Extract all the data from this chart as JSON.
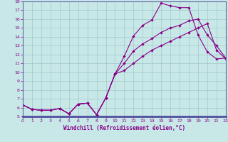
{
  "xlabel": "Windchill (Refroidissement éolien,°C)",
  "xlim": [
    0,
    22
  ],
  "ylim": [
    5,
    18
  ],
  "xticks": [
    0,
    1,
    2,
    3,
    4,
    5,
    6,
    7,
    8,
    9,
    10,
    11,
    12,
    13,
    14,
    15,
    16,
    17,
    18,
    19,
    20,
    21,
    22
  ],
  "yticks": [
    5,
    6,
    7,
    8,
    9,
    10,
    11,
    12,
    13,
    14,
    15,
    16,
    17,
    18
  ],
  "bg_color": "#c8e8e8",
  "line_color": "#880088",
  "grid_color": "#a0c8c8",
  "border_color": "#6060a0",
  "line1_x": [
    0,
    1,
    2,
    3,
    4,
    5,
    6,
    7,
    8,
    9,
    10,
    11,
    12,
    13,
    14,
    15,
    16,
    17,
    18,
    19,
    20,
    21,
    22
  ],
  "line1_y": [
    6.3,
    5.8,
    5.7,
    5.7,
    5.9,
    5.3,
    6.4,
    6.5,
    5.2,
    7.1,
    9.8,
    11.8,
    14.1,
    15.3,
    15.9,
    17.8,
    17.5,
    17.3,
    17.3,
    14.2,
    12.3,
    11.5,
    11.6
  ],
  "line2_x": [
    0,
    1,
    2,
    3,
    4,
    5,
    6,
    7,
    8,
    9,
    10,
    11,
    12,
    13,
    14,
    15,
    16,
    17,
    18,
    19,
    20,
    21,
    22
  ],
  "line2_y": [
    6.3,
    5.8,
    5.7,
    5.7,
    5.9,
    5.3,
    6.4,
    6.5,
    5.2,
    7.1,
    9.8,
    11.0,
    12.4,
    13.2,
    13.8,
    14.5,
    15.0,
    15.3,
    15.8,
    16.0,
    14.2,
    13.0,
    11.6
  ],
  "line3_x": [
    0,
    1,
    2,
    3,
    4,
    5,
    6,
    7,
    8,
    9,
    10,
    11,
    12,
    13,
    14,
    15,
    16,
    17,
    18,
    19,
    20,
    21,
    22
  ],
  "line3_y": [
    6.3,
    5.8,
    5.7,
    5.7,
    5.9,
    5.3,
    6.4,
    6.5,
    5.2,
    7.1,
    9.8,
    10.2,
    11.0,
    11.8,
    12.5,
    13.0,
    13.5,
    14.0,
    14.5,
    15.0,
    15.5,
    12.5,
    11.5
  ]
}
